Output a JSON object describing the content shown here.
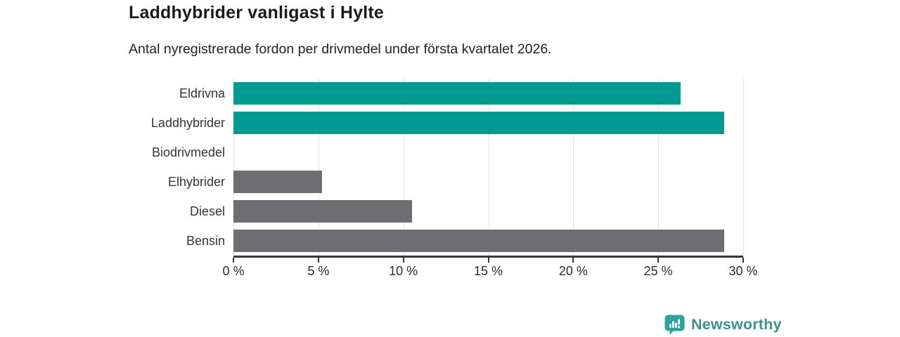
{
  "chart_data": {
    "type": "bar",
    "orientation": "horizontal",
    "title": "Laddhybrider vanligast i Hylte",
    "subtitle": "Antal nyregistrerade fordon per drivmedel under första kvartalet 2026.",
    "categories": [
      "Eldrivna",
      "Laddhybrider",
      "Biodrivmedel",
      "Elhybrider",
      "Diesel",
      "Bensin"
    ],
    "values": [
      26.3,
      28.9,
      0,
      5.2,
      10.5,
      28.9
    ],
    "unit": "%",
    "xlabel": "",
    "ylabel": "",
    "xlim": [
      0,
      30
    ],
    "x_ticks": [
      0,
      5,
      10,
      15,
      20,
      25,
      30
    ],
    "x_tick_labels": [
      "0 %",
      "5 %",
      "10 %",
      "15 %",
      "20 %",
      "25 %",
      "30 %"
    ],
    "grid": "vertical",
    "legend": "none",
    "bar_colors": [
      "#009a93",
      "#009a93",
      "#6e6e72",
      "#6e6e72",
      "#6e6e72",
      "#6e6e72"
    ],
    "highlight_color": "#009a93",
    "default_color": "#6e6e72",
    "gridline_color": "#e2e2e2",
    "axis_color": "#363636"
  },
  "footer": {
    "brand": "Newsworthy",
    "brand_color": "#3e908c",
    "logo_icon": "bar-chart-speech-bubble",
    "logo_icon_color": "#2ca39d"
  }
}
